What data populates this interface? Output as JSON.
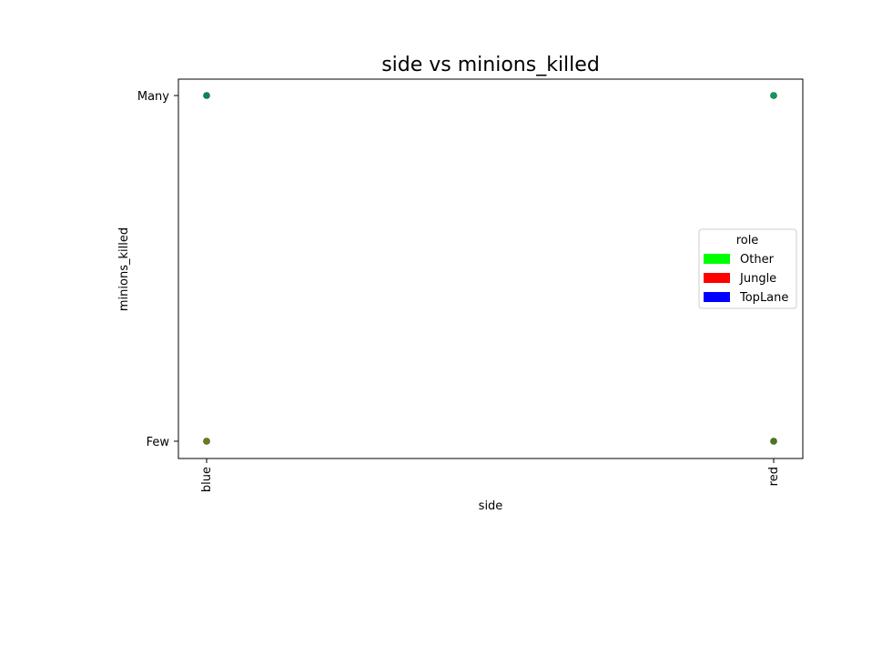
{
  "chart_data": {
    "type": "scatter",
    "title": "side vs minions_killed",
    "xlabel": "side",
    "ylabel": "minions_killed",
    "x_categories": [
      "blue",
      "red"
    ],
    "y_categories": [
      "Few",
      "Many"
    ],
    "grid": false,
    "legend": {
      "title": "role",
      "placement": "center-right",
      "entries": [
        {
          "name": "Other",
          "color": "#00ff00"
        },
        {
          "name": "Jungle",
          "color": "#ff0000"
        },
        {
          "name": "TopLane",
          "color": "#0000ff"
        }
      ]
    },
    "points": [
      {
        "x": "blue",
        "y": "Many",
        "color": "#008b5e"
      },
      {
        "x": "red",
        "y": "Many",
        "color": "#00a05a"
      },
      {
        "x": "blue",
        "y": "Few",
        "color": "#6b7d10"
      },
      {
        "x": "red",
        "y": "Few",
        "color": "#4a7a12"
      }
    ]
  }
}
